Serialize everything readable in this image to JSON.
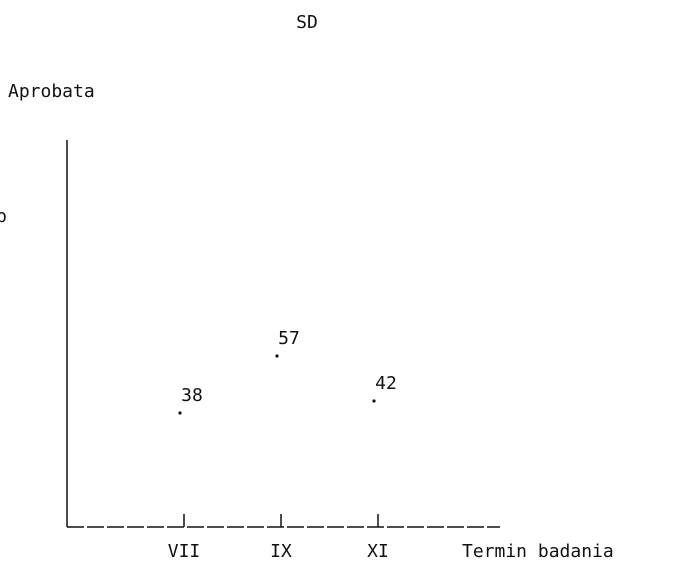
{
  "chart_data": {
    "type": "scatter",
    "title": "SD",
    "ylabel": "Aprobata",
    "ylabel_fragment": "b",
    "xlabel": "Termin badania",
    "categories": [
      "VII",
      "IX",
      "XI"
    ],
    "values": [
      38,
      57,
      42
    ],
    "data_labels": [
      "38",
      "57",
      "42"
    ],
    "ylim": [
      0,
      150
    ],
    "grid": false,
    "ink_color": "#111111",
    "background": "#ffffff"
  }
}
